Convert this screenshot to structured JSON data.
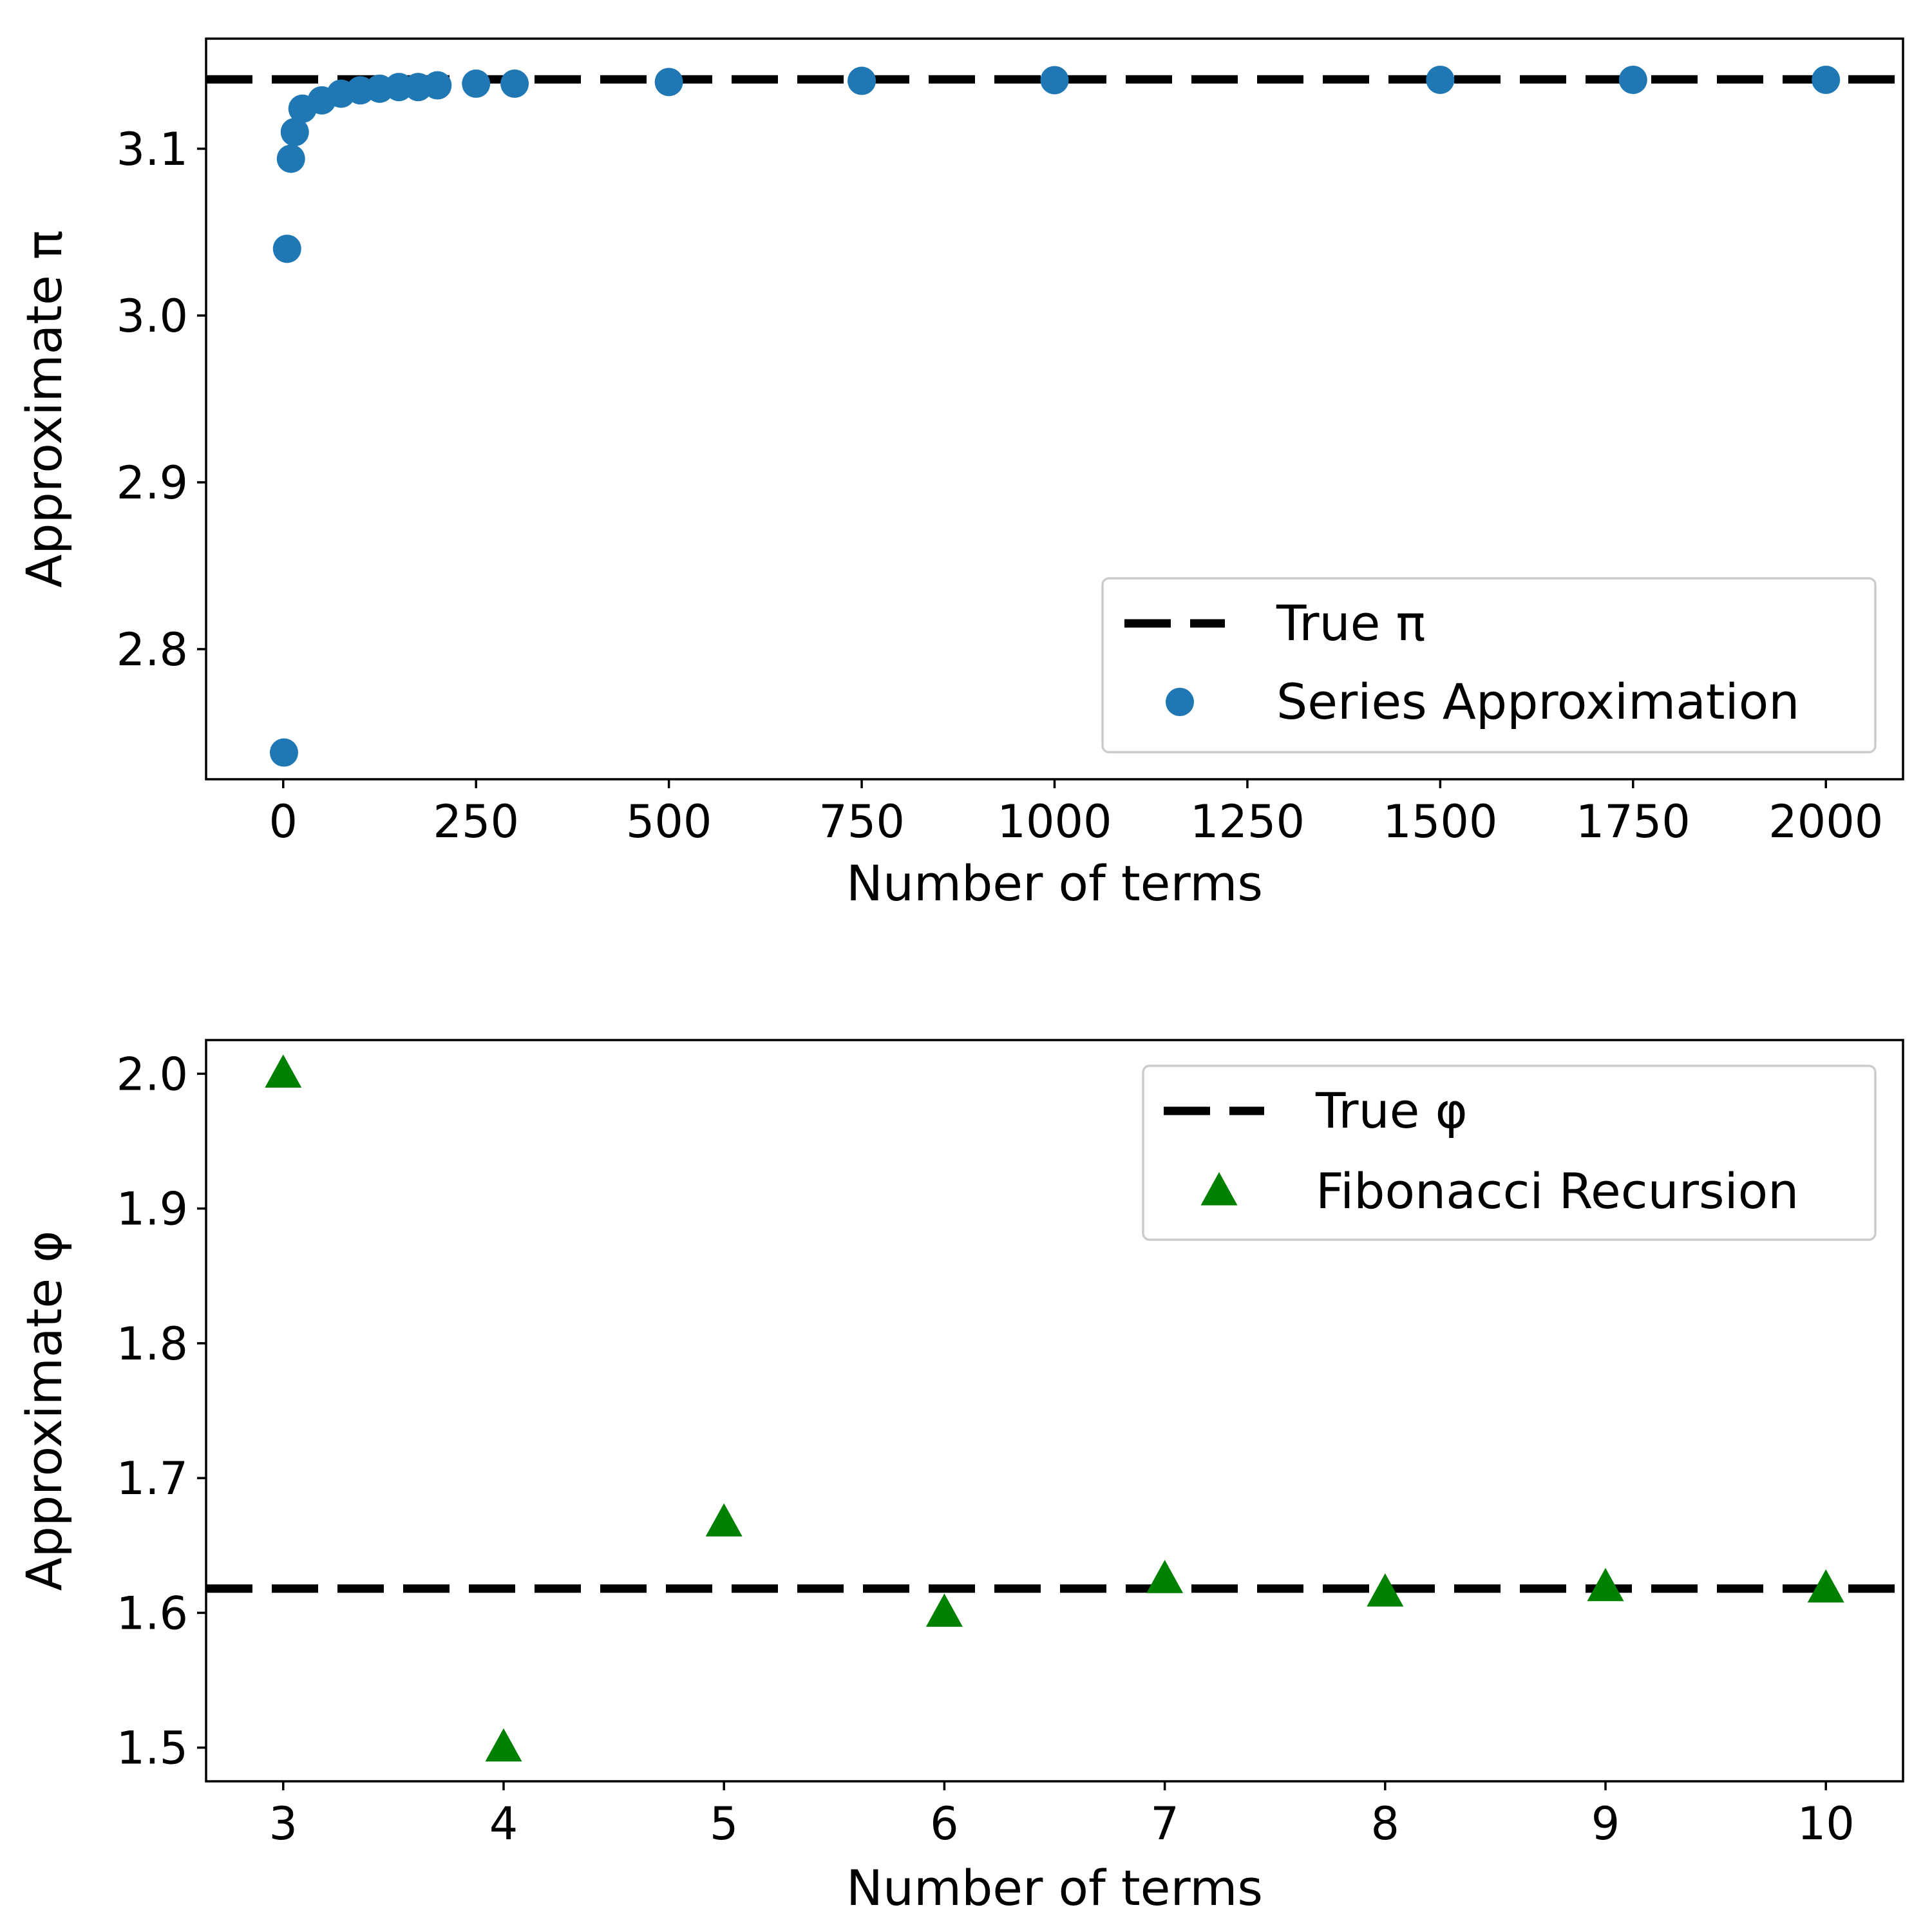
{
  "chart_data": [
    {
      "type": "scatter",
      "xlabel": "Number of terms",
      "ylabel": "Approximate π",
      "xlim": [
        -100,
        2100
      ],
      "ylim": [
        2.722,
        3.166
      ],
      "x_ticks": [
        0,
        250,
        500,
        750,
        1000,
        1250,
        1500,
        1750,
        2000
      ],
      "y_ticks": [
        2.8,
        2.9,
        3.0,
        3.1
      ],
      "grid": false,
      "legend_position": "lower-right",
      "reference_line": {
        "name": "True π",
        "y": 3.14159,
        "style": "dashed",
        "color": "#000000"
      },
      "series": [
        {
          "name": "Series Approximation",
          "marker": "circle",
          "color": "#1f77b4",
          "x": [
            1,
            5,
            10,
            15,
            25,
            50,
            75,
            100,
            125,
            150,
            175,
            200,
            250,
            300,
            500,
            750,
            1000,
            1500,
            1750,
            2000
          ],
          "y": [
            2.738,
            3.04,
            3.094,
            3.11,
            3.124,
            3.129,
            3.133,
            3.135,
            3.136,
            3.137,
            3.137,
            3.138,
            3.139,
            3.139,
            3.14,
            3.1407,
            3.1411,
            3.1413,
            3.1413,
            3.1413
          ]
        }
      ]
    },
    {
      "type": "scatter",
      "xlabel": "Number of terms",
      "ylabel": "Approximate φ",
      "xlim": [
        2.65,
        10.35
      ],
      "ylim": [
        1.475,
        2.025
      ],
      "x_ticks": [
        3,
        4,
        5,
        6,
        7,
        8,
        9,
        10
      ],
      "y_ticks": [
        1.5,
        1.6,
        1.7,
        1.8,
        1.9,
        2.0
      ],
      "grid": false,
      "legend_position": "top-right",
      "reference_line": {
        "name": "True φ",
        "y": 1.618,
        "style": "dashed",
        "color": "#000000"
      },
      "series": [
        {
          "name": "Fibonacci Recursion",
          "marker": "triangle",
          "color": "#008000",
          "x": [
            3,
            4,
            5,
            6,
            7,
            8,
            9,
            10
          ],
          "y": [
            2.0,
            1.5,
            1.667,
            1.6,
            1.625,
            1.615,
            1.619,
            1.618
          ]
        }
      ]
    }
  ]
}
